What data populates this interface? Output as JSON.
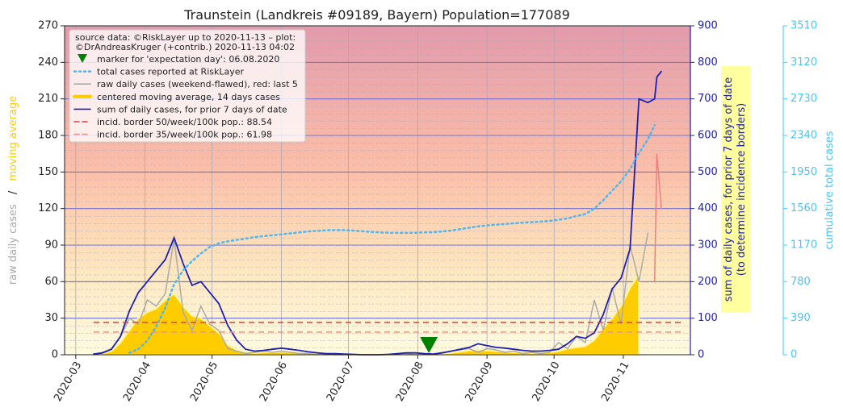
{
  "chart_data": {
    "type": "line",
    "title": "Traunstein (Landkreis #09189, Bayern) Population=177089",
    "x": [
      8,
      12,
      16,
      20,
      24,
      28,
      32,
      36,
      40,
      44,
      48,
      52,
      56,
      60,
      64,
      68,
      72,
      76,
      80,
      84,
      88,
      92,
      96,
      100,
      104,
      108,
      112,
      116,
      120,
      124,
      128,
      132,
      136,
      140,
      144,
      148,
      152,
      156,
      160,
      164,
      168,
      172,
      176,
      180,
      184,
      188,
      192,
      196,
      200,
      204,
      208,
      212,
      216,
      220,
      224,
      228,
      232,
      236,
      240,
      244,
      248,
      252,
      256,
      259,
      260,
      262
    ],
    "xlim": [
      -5,
      275
    ],
    "xticks": [
      {
        "value": 0,
        "label": "2020-03"
      },
      {
        "value": 31,
        "label": "2020-04"
      },
      {
        "value": 61,
        "label": "2020-05"
      },
      {
        "value": 92,
        "label": "2020-06"
      },
      {
        "value": 122,
        "label": "2020-07"
      },
      {
        "value": 153,
        "label": "2020-08"
      },
      {
        "value": 184,
        "label": "2020-09"
      },
      {
        "value": 214,
        "label": "2020-10"
      },
      {
        "value": 245,
        "label": "2020-11"
      }
    ],
    "ylim": [
      0,
      270
    ],
    "yticks": [
      0,
      30,
      60,
      90,
      120,
      150,
      180,
      210,
      240,
      270
    ],
    "y2lim": [
      0,
      900
    ],
    "y2ticks": [
      0,
      100,
      200,
      300,
      400,
      500,
      600,
      700,
      800,
      900
    ],
    "y3lim": [
      0,
      3510
    ],
    "y3ticks": [
      0,
      390,
      780,
      1170,
      1560,
      1950,
      2340,
      2730,
      3120,
      3510
    ],
    "ylabel": [
      "raw daily cases",
      "/",
      "moving average"
    ],
    "y2label": [
      "sum of daily cases, for prior 7 days of date",
      "(to determine incidence borders)"
    ],
    "y3label": "cumulative total cases",
    "legend_title": [
      "source data: ©RiskLayer up to 2020-11-13 – plot:",
      "©DrAndreasKruger (+contrib.) 2020-11-13 04:02"
    ],
    "legend": "upper left",
    "grid": true,
    "series": [
      {
        "name": "centered moving average, 14 days cases",
        "color": "#ffcc00",
        "style": "area",
        "axis": "y",
        "values": [
          0,
          1,
          3,
          10,
          20,
          30,
          35,
          38,
          45,
          50,
          40,
          32,
          30,
          24,
          18,
          8,
          4,
          2,
          1.5,
          2,
          2,
          2.5,
          2,
          1.5,
          1,
          0.7,
          0.5,
          0.4,
          0.3,
          0.2,
          0.1,
          0.1,
          0.2,
          0.3,
          0.5,
          0.6,
          0.6,
          0.5,
          0.5,
          1,
          1.5,
          2.5,
          3.5,
          4,
          3.5,
          3,
          2.5,
          2,
          1.7,
          1.5,
          1.5,
          2,
          3,
          5,
          6,
          7,
          12,
          22,
          30,
          40,
          55,
          66,
          null,
          null,
          null,
          null
        ]
      },
      {
        "name": "raw daily cases (weekend-flawed), red: last 5",
        "color": "#aaaaaa",
        "style": "line",
        "axis": "y",
        "values": [
          0,
          2,
          5,
          15,
          30,
          25,
          45,
          40,
          50,
          95,
          35,
          20,
          40,
          25,
          20,
          5,
          3,
          1,
          2,
          3,
          2,
          3,
          2,
          1,
          1,
          0,
          1,
          0,
          0,
          0,
          0,
          0,
          0,
          0,
          1,
          1,
          0,
          1,
          0,
          2,
          3,
          4,
          5,
          2,
          5,
          4,
          2,
          3,
          1,
          2,
          1,
          2,
          10,
          5,
          15,
          10,
          45,
          20,
          55,
          25,
          90,
          60,
          100,
          null,
          null,
          null
        ]
      },
      {
        "color": "#f08080",
        "style": "line",
        "axis": "y",
        "values": [
          null,
          null,
          null,
          null,
          null,
          null,
          null,
          null,
          null,
          null,
          null,
          null,
          null,
          null,
          null,
          null,
          null,
          null,
          null,
          null,
          null,
          null,
          null,
          null,
          null,
          null,
          null,
          null,
          null,
          null,
          null,
          null,
          null,
          null,
          null,
          null,
          null,
          null,
          null,
          null,
          null,
          null,
          null,
          null,
          null,
          null,
          null,
          null,
          null,
          null,
          null,
          null,
          null,
          null,
          null,
          null,
          null,
          null,
          null,
          null,
          null,
          null,
          null,
          60,
          165,
          120
        ]
      },
      {
        "name": "sum of daily cases, for prior 7 days of date",
        "color": "#2020b0",
        "style": "line",
        "axis": "y2",
        "values": [
          2,
          5,
          15,
          50,
          120,
          170,
          200,
          230,
          260,
          320,
          250,
          190,
          200,
          170,
          140,
          80,
          40,
          15,
          10,
          12,
          15,
          18,
          15,
          12,
          8,
          5,
          3,
          3,
          2,
          1,
          0,
          0,
          0,
          1,
          3,
          5,
          5,
          3,
          2,
          5,
          10,
          15,
          20,
          30,
          25,
          20,
          18,
          15,
          12,
          10,
          10,
          12,
          15,
          30,
          50,
          45,
          60,
          110,
          180,
          210,
          290,
          700,
          690,
          700,
          760,
          775
        ]
      },
      {
        "name": "total cases reported at RiskLayer",
        "color": "#4db8f0",
        "style": "dotted",
        "axis": "y3",
        "values": [
          null,
          null,
          null,
          null,
          20,
          60,
          150,
          300,
          500,
          750,
          900,
          1000,
          1080,
          1150,
          1190,
          1210,
          1225,
          1240,
          1255,
          1265,
          1275,
          1285,
          1295,
          1305,
          1315,
          1322,
          1328,
          1330,
          1330,
          1325,
          1318,
          1310,
          1305,
          1302,
          1300,
          1300,
          1302,
          1305,
          1308,
          1315,
          1325,
          1340,
          1355,
          1370,
          1380,
          1388,
          1395,
          1402,
          1410,
          1415,
          1420,
          1428,
          1440,
          1455,
          1480,
          1500,
          1560,
          1650,
          1750,
          1850,
          1980,
          2150,
          2300,
          2450,
          null,
          null
        ]
      }
    ],
    "borders": [
      {
        "name": "incid. border 50/week/100k pop.: 88.54",
        "value": 88.54,
        "color": "#e04040",
        "axis": "y2",
        "xrange": [
          8,
          271
        ]
      },
      {
        "name": "incid. border 35/week/100k pop.: 61.98",
        "value": 61.98,
        "color": "#f09090",
        "axis": "y2",
        "xrange": [
          8,
          271
        ]
      }
    ],
    "marker": {
      "name": "marker for 'expectation day': 06.08.2020",
      "x": 158,
      "value": 0,
      "color": "#008000"
    }
  }
}
